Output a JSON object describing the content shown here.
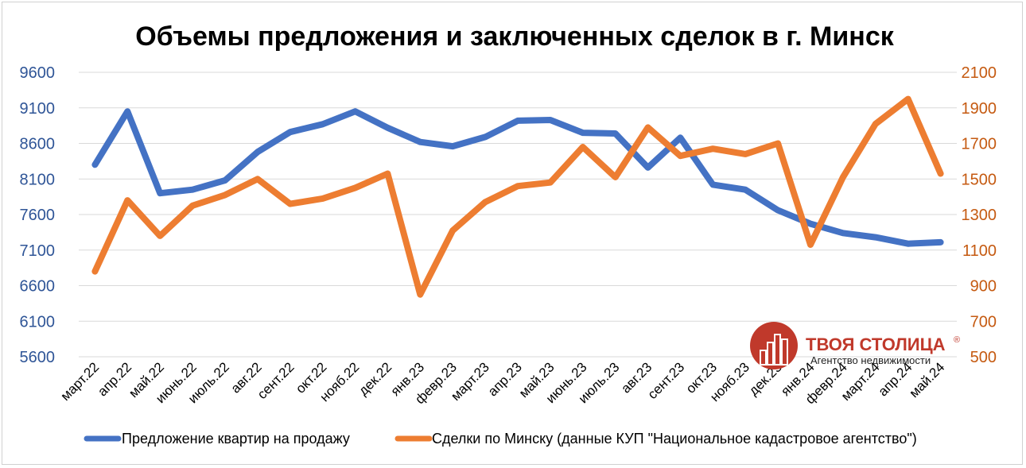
{
  "chart_data": {
    "type": "line",
    "title": "Объемы предложения и заключенных сделок в г. Минск",
    "categories": [
      "март.22",
      "апр.22",
      "май.22",
      "июнь.22",
      "июль.22",
      "авг.22",
      "сент.22",
      "окт.22",
      "нояб.22",
      "дек.22",
      "янв.23",
      "февр.23",
      "март.23",
      "апр.23",
      "май.23",
      "июнь.23",
      "июль.23",
      "авг.23",
      "сент.23",
      "окт.23",
      "нояб.23",
      "дек.23",
      "янв.24",
      "февр.24",
      "март.24",
      "апр.24",
      "май.24"
    ],
    "y_left": {
      "min": 5600,
      "max": 9600,
      "ticks": [
        5600,
        6100,
        6600,
        7100,
        7600,
        8100,
        8600,
        9100,
        9600
      ],
      "color": "#2F5597"
    },
    "y_right": {
      "min": 500,
      "max": 2100,
      "ticks": [
        500,
        700,
        900,
        1100,
        1300,
        1500,
        1700,
        1900,
        2100
      ],
      "color": "#C55A11"
    },
    "series": [
      {
        "name": "Предложение квартир на продажу",
        "axis": "left",
        "color": "#4472C4",
        "values": [
          8300,
          9050,
          7900,
          7950,
          8080,
          8480,
          8760,
          8870,
          9050,
          8820,
          8620,
          8560,
          8690,
          8920,
          8930,
          8750,
          8740,
          8260,
          8680,
          8020,
          7950,
          7660,
          7470,
          7340,
          7280,
          7190,
          7210
        ]
      },
      {
        "name": "Сделки по Минску (данные КУП \"Национальное кадастровое агентство\")",
        "axis": "right",
        "color": "#ED7D31",
        "values": [
          980,
          1380,
          1180,
          1350,
          1410,
          1500,
          1360,
          1390,
          1450,
          1530,
          850,
          1210,
          1370,
          1460,
          1480,
          1680,
          1510,
          1790,
          1630,
          1670,
          1640,
          1700,
          1130,
          1510,
          1810,
          1950,
          1530
        ]
      }
    ],
    "grid": true,
    "legend": "bottom"
  },
  "logo": {
    "name": "ТВОЯ СТОЛИЦА",
    "tagline": "Агентство недвижимости",
    "reg_mark": "®",
    "color": "#C0392B"
  }
}
